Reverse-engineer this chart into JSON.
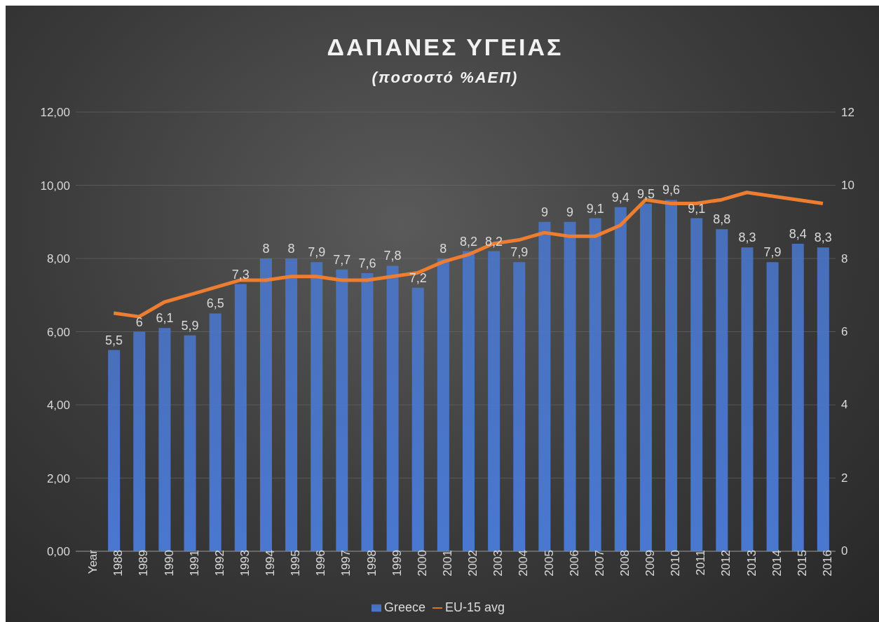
{
  "chart_data": {
    "type": "bar",
    "title": "ΔΑΠΑΝΕΣ ΥΓΕΙΑΣ",
    "subtitle": "(ποσοστό %ΑΕΠ)",
    "categories": [
      "Year",
      "1988",
      "1989",
      "1990",
      "1991",
      "1992",
      "1993",
      "1994",
      "1995",
      "1996",
      "1997",
      "1998",
      "1999",
      "2000",
      "2001",
      "2002",
      "2003",
      "2004",
      "2005",
      "2006",
      "2007",
      "2008",
      "2009",
      "2010",
      "2011",
      "2012",
      "2013",
      "2014",
      "2015",
      "2016"
    ],
    "series": [
      {
        "name": "Greece",
        "color": "#4a78d0",
        "values": [
          null,
          5.5,
          6,
          6.1,
          5.9,
          6.5,
          7.3,
          8,
          8,
          7.9,
          7.7,
          7.6,
          7.8,
          7.2,
          8,
          8.2,
          8.2,
          7.9,
          9,
          9,
          9.1,
          9.4,
          9.5,
          9.6,
          9.1,
          8.8,
          8.3,
          7.9,
          8.4,
          8.3
        ],
        "value_labels": [
          null,
          "5,5",
          "6",
          "6,1",
          "5,9",
          "6,5",
          "7,3",
          "8",
          "8",
          "7,9",
          "7,7",
          "7,6",
          "7,8",
          "7,2",
          "8",
          "8,2",
          "8,2",
          "7,9",
          "9",
          "9",
          "9,1",
          "9,4",
          "9,5",
          "9,6",
          "9,1",
          "8,8",
          "8,3",
          "7,9",
          "8,4",
          "8,3"
        ]
      },
      {
        "name": "EU-15 avg",
        "type": "line",
        "axis": "y2",
        "color": "#ed7d31",
        "values": [
          null,
          6.5,
          6.4,
          6.8,
          7.0,
          7.2,
          7.4,
          7.4,
          7.5,
          7.5,
          7.4,
          7.4,
          7.5,
          7.6,
          7.9,
          8.1,
          8.4,
          8.5,
          8.7,
          8.6,
          8.6,
          8.9,
          9.6,
          9.5,
          9.5,
          9.6,
          9.8,
          9.7,
          9.6,
          9.5
        ]
      }
    ],
    "ylim": [
      0,
      12
    ],
    "yticks": [
      {
        "value": 0,
        "label": "0,00"
      },
      {
        "value": 2,
        "label": "2,00"
      },
      {
        "value": 4,
        "label": "4,00"
      },
      {
        "value": 6,
        "label": "6,00"
      },
      {
        "value": 8,
        "label": "8,00"
      },
      {
        "value": 10,
        "label": "10,00"
      },
      {
        "value": 12,
        "label": "12,00"
      }
    ],
    "y2lim": [
      0,
      12
    ],
    "y2ticks": [
      0,
      2,
      4,
      6,
      8,
      10,
      12
    ],
    "grid": "y",
    "legend": "bottom",
    "marker": "none"
  }
}
